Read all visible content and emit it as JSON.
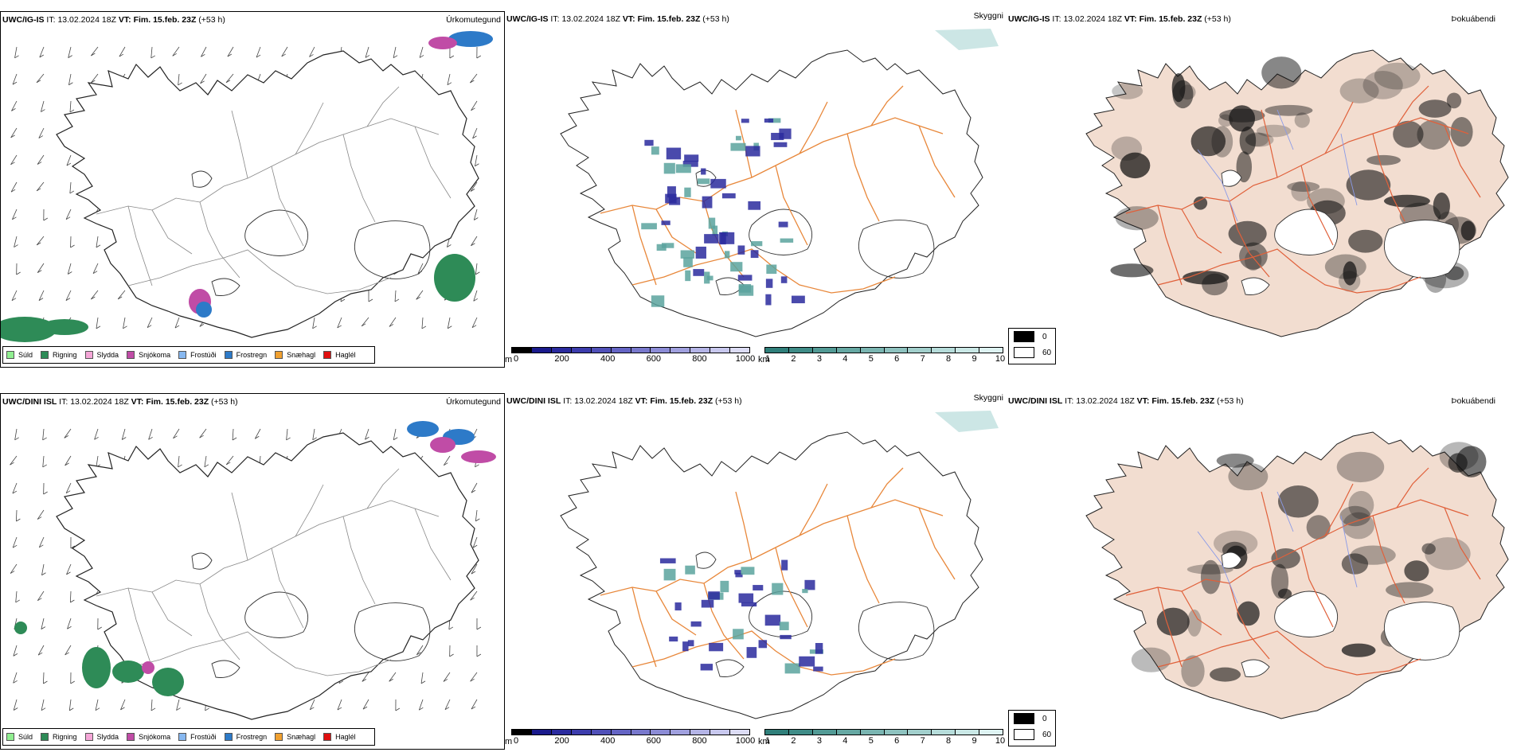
{
  "panels": [
    {
      "id": "top-left",
      "model": "UWC/IG-IS",
      "it_label": "IT:",
      "it_value": "13.02.2024 18Z",
      "vt_label": "VT:",
      "vt_value": "Fim. 15.feb. 23Z",
      "lead": "(+53 h)",
      "type_label": "Úrkomutegund"
    },
    {
      "id": "top-mid",
      "model": "UWC/IG-IS",
      "it_label": "IT:",
      "it_value": "13.02.2024 18Z",
      "vt_label": "VT:",
      "vt_value": "Fim. 15.feb. 23Z",
      "lead": "(+53 h)",
      "type_label": "Skyggni"
    },
    {
      "id": "top-right",
      "model": "UWC/IG-IS",
      "it_label": "IT:",
      "it_value": "13.02.2024 18Z",
      "vt_label": "VT:",
      "vt_value": "Fim. 15.feb. 23Z",
      "lead": "(+53 h)",
      "type_label": "Þokuábendi"
    },
    {
      "id": "bottom-left",
      "model": "UWC/DINI ISL",
      "it_label": "IT:",
      "it_value": "13.02.2024 18Z",
      "vt_label": "VT:",
      "vt_value": "Fim. 15.feb. 23Z",
      "lead": "(+53 h)",
      "type_label": "Úrkomutegund"
    },
    {
      "id": "bottom-mid",
      "model": "UWC/DINI ISL",
      "it_label": "IT:",
      "it_value": "13.02.2024 18Z",
      "vt_label": "VT:",
      "vt_value": "Fim. 15.feb. 23Z",
      "lead": "(+53 h)",
      "type_label": "Skyggni"
    },
    {
      "id": "bottom-right",
      "model": "UWC/DINI ISL",
      "it_label": "IT:",
      "it_value": "13.02.2024 18Z",
      "vt_label": "VT:",
      "vt_value": "Fim. 15.feb. 23Z",
      "lead": "(+53 h)",
      "type_label": "Þokuábendi"
    }
  ],
  "precip_legend": [
    {
      "label": "Súld",
      "color": "#90ee90"
    },
    {
      "label": "Rigning",
      "color": "#2e8b57"
    },
    {
      "label": "Slydda",
      "color": "#f4a6d7"
    },
    {
      "label": "Snjókoma",
      "color": "#c04ca6"
    },
    {
      "label": "Frostúði",
      "color": "#87b8f0"
    },
    {
      "label": "Frostregn",
      "color": "#2d7ac8"
    },
    {
      "label": "Snæhagl",
      "color": "#f0a030"
    },
    {
      "label": "Haglél",
      "color": "#e01010"
    }
  ],
  "vis_m_scale": {
    "unit": "m",
    "ticks": [
      "0",
      "200",
      "400",
      "600",
      "800",
      "1000"
    ],
    "colors": [
      "#000000",
      "#1a1a8c",
      "#2a2a9e",
      "#3c3cac",
      "#5050b8",
      "#6464c4",
      "#7878cc",
      "#8c8cd6",
      "#a0a0de",
      "#b4b4e6",
      "#c8c8ee",
      "#dcdcf4"
    ]
  },
  "vis_km_scale": {
    "unit": "km",
    "ticks": [
      "1",
      "2",
      "3",
      "4",
      "5",
      "6",
      "7",
      "8",
      "9",
      "10"
    ],
    "colors": [
      "#2f7f7a",
      "#3f8c87",
      "#529a95",
      "#66a8a3",
      "#7ab5b1",
      "#8ec2bf",
      "#a2cfcc",
      "#b6dcda",
      "#cae8e6",
      "#def3f2"
    ]
  },
  "fog_legend": [
    {
      "label": "0",
      "color": "#000000"
    },
    {
      "label": "60",
      "color": "#ffffff"
    }
  ],
  "colors": {
    "land_fog": "#f2ddd0",
    "roads_orange": "#e8873a",
    "roads_red": "#e0603a",
    "rivers": "#8a9ae8",
    "coast": "#222222"
  }
}
